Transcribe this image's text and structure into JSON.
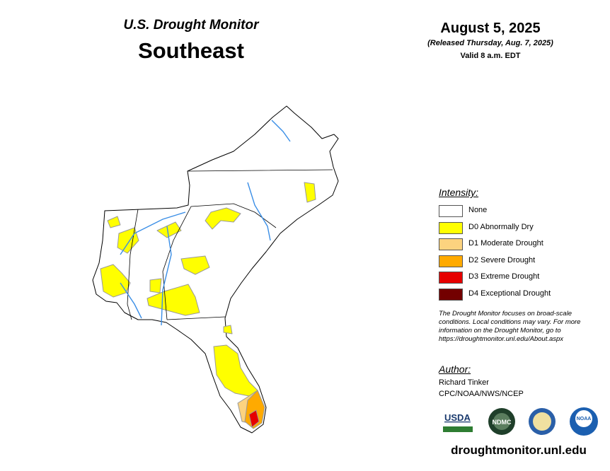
{
  "header": {
    "program": "U.S. Drought Monitor",
    "region": "Southeast",
    "date": "August 5, 2025",
    "released": "(Released Thursday, Aug. 7, 2025)",
    "valid": "Valid 8 a.m. EDT"
  },
  "legend": {
    "title": "Intensity:",
    "items": [
      {
        "label": "None",
        "color": "#ffffff"
      },
      {
        "label": "D0 Abnormally Dry",
        "color": "#ffff00"
      },
      {
        "label": "D1 Moderate Drought",
        "color": "#fcd37f"
      },
      {
        "label": "D2 Severe Drought",
        "color": "#ffaa00"
      },
      {
        "label": "D3 Extreme Drought",
        "color": "#e60000"
      },
      {
        "label": "D4 Exceptional Drought",
        "color": "#730000"
      }
    ]
  },
  "note": "The Drought Monitor focuses on broad-scale conditions. Local conditions may vary. For more information on the Drought Monitor, go to https://droughtmonitor.unl.edu/About.aspx",
  "author": {
    "title": "Author:",
    "name": "Richard Tinker",
    "affiliation": "CPC/NOAA/NWS/NCEP"
  },
  "logos": [
    "USDA",
    "NDMC",
    "NOAA"
  ],
  "url": "droughtmonitor.unl.edu"
}
